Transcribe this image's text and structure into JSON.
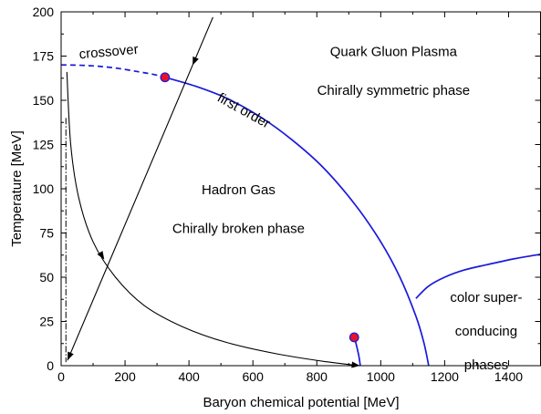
{
  "chart_data": {
    "type": "line",
    "title": "",
    "xlabel": "Baryon chemical potential [MeV]",
    "ylabel": "Temperature [MeV]",
    "xlim": [
      0,
      1500
    ],
    "ylim": [
      0,
      200
    ],
    "x_ticks": [
      0,
      200,
      400,
      600,
      800,
      1000,
      1200,
      1400
    ],
    "y_ticks": [
      0,
      25,
      50,
      75,
      100,
      125,
      150,
      175,
      200
    ],
    "grid": false,
    "colors": {
      "phase": "#1a1adb",
      "point_fill": "#e8102a",
      "point_stroke": "#1a1adb",
      "trajectory": "#000000"
    },
    "series": [
      {
        "name": "crossover",
        "style": "dashed",
        "x": [
          0,
          60,
          120,
          180,
          240,
          290,
          325
        ],
        "y": [
          170,
          169.8,
          169.2,
          168,
          166.2,
          164.6,
          163
        ]
      },
      {
        "name": "first order",
        "style": "solid",
        "x": [
          325,
          420,
          520,
          620,
          720,
          820,
          920,
          1000,
          1060,
          1110,
          1135,
          1150
        ],
        "y": [
          163,
          158,
          151,
          141,
          128,
          112,
          91,
          70,
          50,
          28,
          13,
          0
        ]
      },
      {
        "name": "",
        "style": "solid",
        "x": [
          1110,
          1150,
          1200,
          1260,
          1330,
          1420,
          1500
        ],
        "y": [
          38,
          45,
          50,
          54,
          57,
          60.5,
          63
        ]
      },
      {
        "name": "",
        "style": "solid",
        "x": [
          918,
          926,
          932,
          936
        ],
        "y": [
          16,
          10,
          5,
          0
        ]
      }
    ],
    "trajectories": [
      {
        "style": "solid",
        "x": [
          475,
          20
        ],
        "y": [
          197,
          3
        ]
      },
      {
        "style": "solid",
        "x": [
          18,
          30,
          55,
          100,
          170,
          260,
          380,
          520,
          680,
          830,
          935
        ],
        "y": [
          166,
          125,
          95,
          70,
          50,
          34,
          22,
          13,
          6.5,
          2.2,
          0
        ]
      },
      {
        "style": "dash-dot",
        "x": [
          15,
          15
        ],
        "y": [
          140,
          2
        ]
      }
    ],
    "critical_points": [
      {
        "x": 325,
        "y": 163
      },
      {
        "x": 917,
        "y": 16
      }
    ],
    "annotations": [
      {
        "text": "crossover",
        "x": 150,
        "y": 175,
        "rotation": -5
      },
      {
        "text": "first order",
        "x": 565,
        "y": 142,
        "rotation": 29
      },
      {
        "text": "Quark Gluon Plasma",
        "x": 1040,
        "y": 175,
        "rotation": 0
      },
      {
        "text": "Chirally symmetric phase",
        "x": 1040,
        "y": 153,
        "rotation": 0
      },
      {
        "text": "Hadron Gas",
        "x": 555,
        "y": 97,
        "rotation": 0
      },
      {
        "text": "Chirally broken phase",
        "x": 555,
        "y": 75,
        "rotation": 0
      },
      {
        "text": "color super-",
        "x": 1330,
        "y": 36,
        "rotation": 0
      },
      {
        "text": "conducing",
        "x": 1330,
        "y": 17,
        "rotation": 0
      },
      {
        "text": "phases",
        "x": 1330,
        "y": -2,
        "rotation": 0
      }
    ]
  }
}
